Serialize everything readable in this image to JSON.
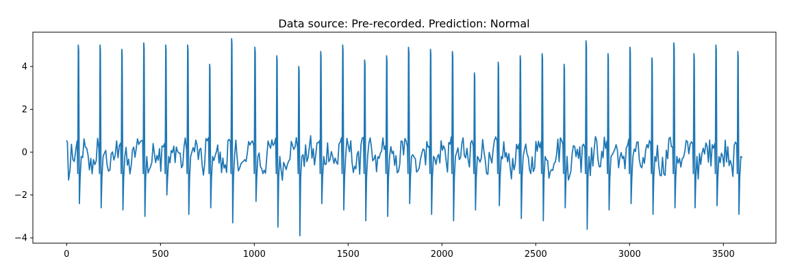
{
  "chart_data": {
    "type": "line",
    "title": "Data source: Pre-recorded. Prediction: Normal",
    "xlabel": "",
    "ylabel": "",
    "xlim": [
      -180,
      3780
    ],
    "ylim": [
      -4.25,
      5.6
    ],
    "x_ticks": [
      0,
      500,
      1000,
      1500,
      2000,
      2500,
      3000,
      3500
    ],
    "x_tick_labels": [
      "0",
      "500",
      "1000",
      "1500",
      "2000",
      "2500",
      "3000",
      "3500"
    ],
    "y_ticks": [
      -4,
      -2,
      0,
      2,
      4
    ],
    "y_tick_labels": [
      "−4",
      "−2",
      "0",
      "2",
      "4"
    ],
    "grid": false,
    "legend": "none",
    "series": [
      {
        "color": "#1f77b4",
        "x_range": [
          0,
          3600
        ],
        "beats": [
          {
            "x": 62,
            "peak": 5.0,
            "trough": -2.4
          },
          {
            "x": 178,
            "peak": 5.0,
            "trough": -2.6
          },
          {
            "x": 294,
            "peak": 4.8,
            "trough": -2.7
          },
          {
            "x": 411,
            "peak": 5.1,
            "trough": -3.0
          },
          {
            "x": 528,
            "peak": 5.0,
            "trough": -2.0
          },
          {
            "x": 645,
            "peak": 5.0,
            "trough": -2.9
          },
          {
            "x": 762,
            "peak": 4.1,
            "trough": -2.6
          },
          {
            "x": 879,
            "peak": 5.3,
            "trough": -3.3
          },
          {
            "x": 1003,
            "peak": 4.9,
            "trough": -2.3
          },
          {
            "x": 1120,
            "peak": 4.5,
            "trough": -3.5
          },
          {
            "x": 1237,
            "peak": 4.0,
            "trough": -3.9
          },
          {
            "x": 1354,
            "peak": 4.7,
            "trough": -2.4
          },
          {
            "x": 1471,
            "peak": 5.0,
            "trough": -2.7
          },
          {
            "x": 1588,
            "peak": 4.3,
            "trough": -3.2
          },
          {
            "x": 1705,
            "peak": 4.5,
            "trough": -3.0
          },
          {
            "x": 1822,
            "peak": 4.9,
            "trough": -2.4
          },
          {
            "x": 1939,
            "peak": 4.8,
            "trough": -2.9
          },
          {
            "x": 2056,
            "peak": 4.7,
            "trough": -3.2
          },
          {
            "x": 2173,
            "peak": 3.7,
            "trough": -2.7
          },
          {
            "x": 2300,
            "peak": 4.2,
            "trough": -2.5
          },
          {
            "x": 2417,
            "peak": 4.5,
            "trough": -3.1
          },
          {
            "x": 2534,
            "peak": 4.6,
            "trough": -3.2
          },
          {
            "x": 2651,
            "peak": 4.1,
            "trough": -2.6
          },
          {
            "x": 2768,
            "peak": 5.2,
            "trough": -3.6
          },
          {
            "x": 2885,
            "peak": 4.6,
            "trough": -2.7
          },
          {
            "x": 3002,
            "peak": 4.9,
            "trough": -2.4
          },
          {
            "x": 3119,
            "peak": 4.4,
            "trough": -2.9
          },
          {
            "x": 3236,
            "peak": 5.1,
            "trough": -2.6
          },
          {
            "x": 3343,
            "peak": 4.6,
            "trough": -2.6
          },
          {
            "x": 3460,
            "peak": 5.0,
            "trough": -2.5
          },
          {
            "x": 3577,
            "peak": 4.7,
            "trough": -2.9
          }
        ],
        "start_value": 0.55,
        "end_value": -0.25
      }
    ]
  }
}
